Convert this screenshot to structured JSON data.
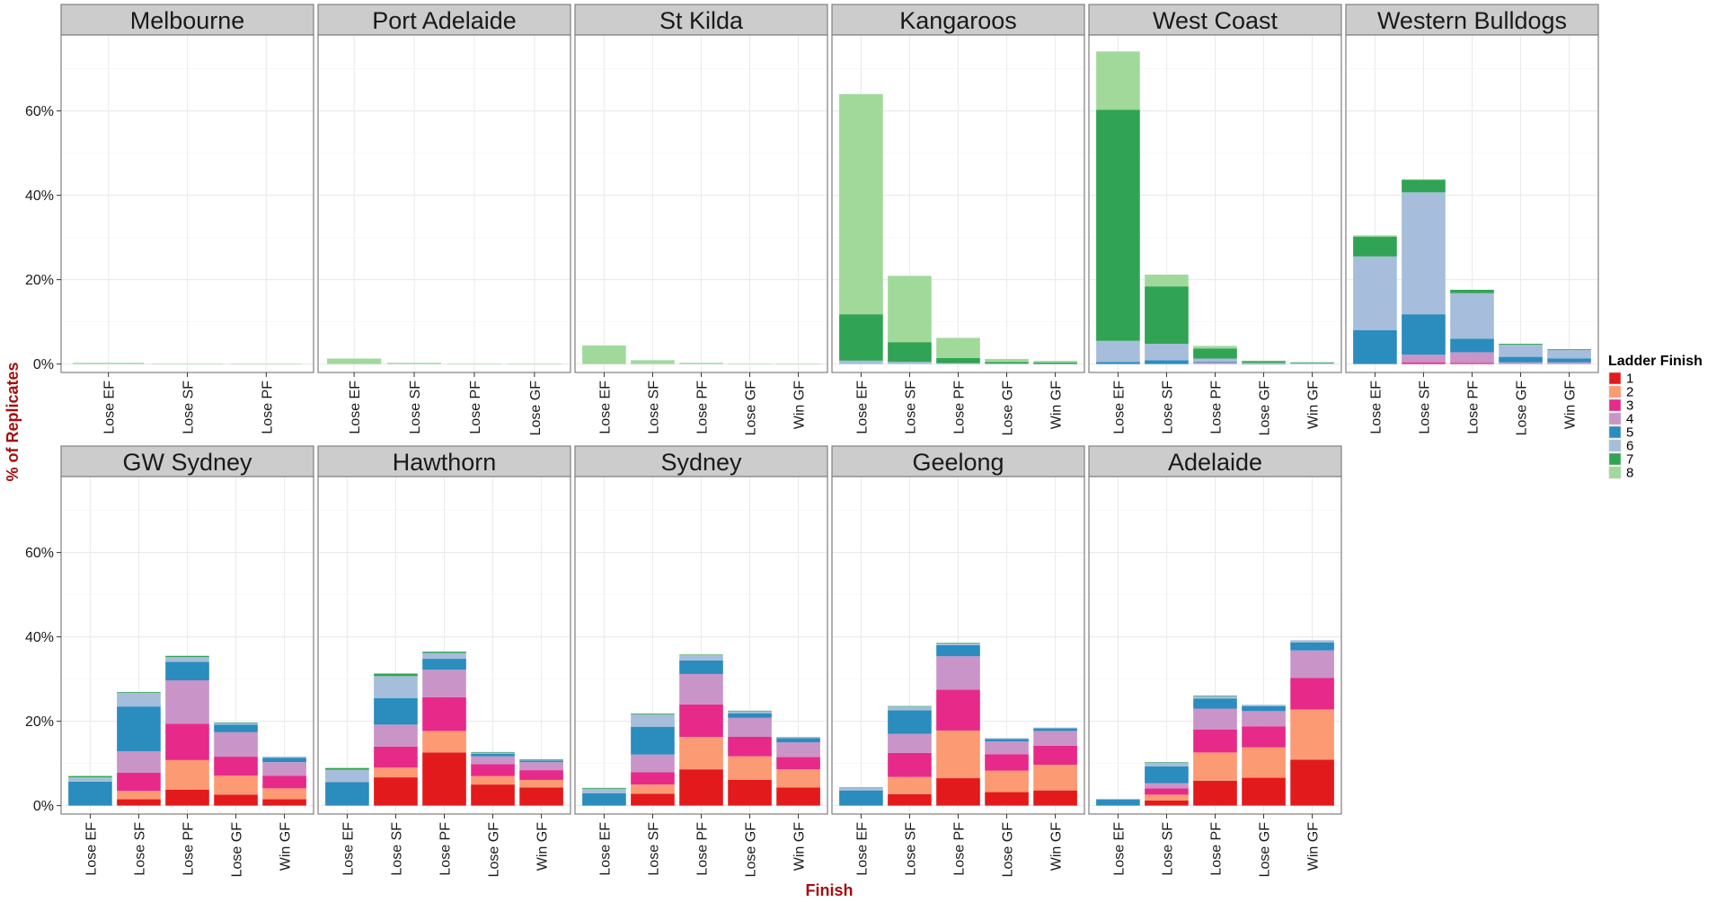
{
  "chart_data": {
    "type": "bar",
    "stacked": true,
    "facet_wrap": true,
    "xlabel": "Finish",
    "ylabel": "% of Replicates",
    "ylim": [
      -2,
      78
    ],
    "y_ticks": [
      0,
      20,
      40,
      60
    ],
    "y_tick_labels": [
      "0%",
      "20%",
      "40%",
      "60%"
    ],
    "grid": true,
    "legend": {
      "title": "Ladder Finish",
      "position": "right",
      "entries": [
        "1",
        "2",
        "3",
        "4",
        "5",
        "6",
        "7",
        "8"
      ],
      "colors": [
        "#e31a1c",
        "#fb9a73",
        "#e7298a",
        "#c994c7",
        "#2b8cbe",
        "#a6bddb",
        "#31a354",
        "#a1d99b"
      ]
    },
    "panels": [
      {
        "team": "Melbourne",
        "categories": [
          "Lose EF",
          "Lose SF",
          "Lose PF"
        ],
        "stacks": [
          [
            0,
            0,
            0,
            0,
            0,
            0,
            0,
            0.3
          ],
          [
            0,
            0,
            0,
            0,
            0,
            0,
            0,
            0.05
          ],
          [
            0,
            0,
            0,
            0,
            0,
            0,
            0,
            0.02
          ]
        ]
      },
      {
        "team": "Port Adelaide",
        "categories": [
          "Lose EF",
          "Lose SF",
          "Lose PF",
          "Lose GF"
        ],
        "stacks": [
          [
            0,
            0,
            0,
            0,
            0,
            0,
            0,
            1.3
          ],
          [
            0,
            0,
            0,
            0,
            0,
            0,
            0,
            0.3
          ],
          [
            0,
            0,
            0,
            0,
            0,
            0,
            0,
            0.05
          ],
          [
            0,
            0,
            0,
            0,
            0,
            0,
            0,
            0.02
          ]
        ]
      },
      {
        "team": "St Kilda",
        "categories": [
          "Lose EF",
          "Lose SF",
          "Lose PF",
          "Lose GF",
          "Win GF"
        ],
        "stacks": [
          [
            0,
            0,
            0,
            0,
            0,
            0,
            0,
            4.4
          ],
          [
            0,
            0,
            0,
            0,
            0,
            0,
            0,
            0.9
          ],
          [
            0,
            0,
            0,
            0,
            0,
            0,
            0,
            0.3
          ],
          [
            0,
            0,
            0,
            0,
            0,
            0,
            0,
            0.05
          ],
          [
            0,
            0,
            0,
            0,
            0,
            0,
            0,
            0.02
          ]
        ]
      },
      {
        "team": "Kangaroos",
        "categories": [
          "Lose EF",
          "Lose SF",
          "Lose PF",
          "Lose GF",
          "Win GF"
        ],
        "stacks": [
          [
            0,
            0,
            0,
            0,
            0,
            0.8,
            11.0,
            52.2
          ],
          [
            0,
            0,
            0,
            0,
            0,
            0.5,
            4.7,
            15.7
          ],
          [
            0,
            0,
            0,
            0,
            0,
            0.2,
            1.2,
            4.8
          ],
          [
            0,
            0,
            0,
            0,
            0,
            0.1,
            0.4,
            0.7
          ],
          [
            0,
            0,
            0,
            0,
            0,
            0.05,
            0.3,
            0.4
          ]
        ]
      },
      {
        "team": "West Coast",
        "categories": [
          "Lose EF",
          "Lose SF",
          "Lose PF",
          "Lose GF",
          "Win GF"
        ],
        "stacks": [
          [
            0,
            0,
            0,
            0,
            0.5,
            5.0,
            54.8,
            13.8
          ],
          [
            0,
            0,
            0,
            0,
            0.9,
            3.9,
            13.6,
            2.8
          ],
          [
            0,
            0,
            0,
            0.4,
            0.2,
            0.7,
            2.4,
            0.6
          ],
          [
            0,
            0,
            0,
            0,
            0.1,
            0.2,
            0.4,
            0.1
          ],
          [
            0,
            0,
            0,
            0,
            0,
            0.2,
            0.2,
            0
          ]
        ]
      },
      {
        "team": "Western Bulldogs",
        "categories": [
          "Lose EF",
          "Lose SF",
          "Lose PF",
          "Lose GF",
          "Win GF"
        ],
        "stacks": [
          [
            0,
            0,
            0,
            0,
            8.0,
            17.5,
            4.7,
            0.3
          ],
          [
            0,
            0,
            0.4,
            1.8,
            9.6,
            28.9,
            3.0,
            0.1
          ],
          [
            0,
            0,
            0.3,
            2.5,
            3.2,
            10.8,
            0.8,
            0
          ],
          [
            0,
            0,
            0,
            0.4,
            1.3,
            2.9,
            0.2,
            0
          ],
          [
            0,
            0,
            0,
            0.4,
            0.9,
            2.0,
            0.2,
            0
          ]
        ]
      },
      {
        "team": "GW Sydney",
        "categories": [
          "Lose EF",
          "Lose SF",
          "Lose PF",
          "Lose GF",
          "Win GF"
        ],
        "stacks": [
          [
            0,
            0,
            0,
            0,
            5.7,
            1.0,
            0.3,
            0.1
          ],
          [
            1.5,
            2.0,
            4.3,
            5.1,
            10.6,
            3.2,
            0.2,
            0
          ],
          [
            3.8,
            7.0,
            8.6,
            10.3,
            4.4,
            1.1,
            0.3,
            0
          ],
          [
            2.6,
            4.5,
            4.5,
            5.8,
            1.8,
            0.4,
            0.1,
            0
          ],
          [
            1.5,
            2.6,
            3.0,
            3.2,
            1.0,
            0.3,
            0,
            0
          ]
        ]
      },
      {
        "team": "Hawthorn",
        "categories": [
          "Lose EF",
          "Lose SF",
          "Lose PF",
          "Lose GF",
          "Win GF"
        ],
        "stacks": [
          [
            0,
            0,
            0,
            0,
            5.6,
            2.9,
            0.4,
            0.1
          ],
          [
            6.7,
            2.3,
            5.0,
            5.2,
            6.3,
            5.2,
            0.6,
            0
          ],
          [
            12.6,
            5.1,
            8.0,
            6.5,
            2.6,
            1.4,
            0.3,
            0
          ],
          [
            5.0,
            2.0,
            2.8,
            1.9,
            0.6,
            0.3,
            0.1,
            0
          ],
          [
            4.3,
            1.8,
            2.3,
            1.9,
            0.4,
            0.2,
            0.1,
            0
          ]
        ]
      },
      {
        "team": "Sydney",
        "categories": [
          "Lose EF",
          "Lose SF",
          "Lose PF",
          "Lose GF",
          "Win GF"
        ],
        "stacks": [
          [
            0,
            0,
            0,
            0,
            2.9,
            1.1,
            0.2,
            0
          ],
          [
            2.8,
            2.2,
            2.9,
            4.2,
            6.6,
            2.9,
            0.2,
            0
          ],
          [
            8.6,
            7.7,
            7.7,
            7.2,
            3.2,
            1.3,
            0.1,
            0
          ],
          [
            6.1,
            5.6,
            4.6,
            4.5,
            1.1,
            0.5,
            0.1,
            0
          ],
          [
            4.3,
            4.3,
            2.9,
            3.5,
            1.0,
            0.3,
            0,
            0
          ]
        ]
      },
      {
        "team": "Geelong",
        "categories": [
          "Lose EF",
          "Lose SF",
          "Lose PF",
          "Lose GF",
          "Win GF"
        ],
        "stacks": [
          [
            0,
            0,
            0,
            0,
            3.6,
            0.6,
            0.1,
            0
          ],
          [
            2.7,
            4.1,
            5.7,
            4.5,
            5.6,
            0.9,
            0.1,
            0
          ],
          [
            6.5,
            11.3,
            9.7,
            7.9,
            2.6,
            0.5,
            0.1,
            0
          ],
          [
            3.2,
            5.1,
            3.9,
            3.0,
            0.6,
            0.2,
            0,
            0
          ],
          [
            3.6,
            6.1,
            4.5,
            3.5,
            0.6,
            0.2,
            0,
            0
          ]
        ]
      },
      {
        "team": "Adelaide",
        "categories": [
          "Lose EF",
          "Lose SF",
          "Lose PF",
          "Lose GF",
          "Win GF"
        ],
        "stacks": [
          [
            0,
            0,
            0,
            0,
            1.4,
            0.2,
            0,
            0
          ],
          [
            1.2,
            1.4,
            1.5,
            1.2,
            4.0,
            0.9,
            0.1,
            0
          ],
          [
            5.9,
            6.7,
            5.4,
            5.0,
            2.4,
            0.6,
            0.1,
            0
          ],
          [
            6.6,
            7.2,
            5.0,
            3.6,
            1.2,
            0.3,
            0,
            0
          ],
          [
            10.9,
            11.9,
            7.5,
            6.5,
            1.9,
            0.5,
            0,
            0
          ]
        ]
      }
    ]
  }
}
